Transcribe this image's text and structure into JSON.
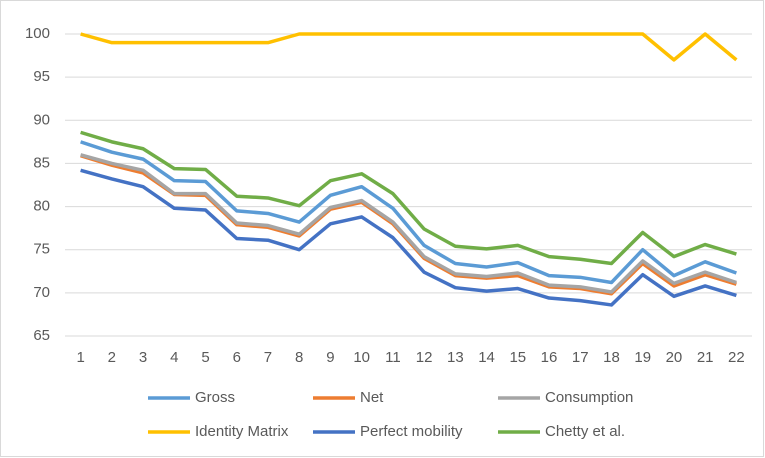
{
  "chart_data": {
    "type": "line",
    "categories": [
      "1",
      "2",
      "3",
      "4",
      "5",
      "6",
      "7",
      "8",
      "9",
      "10",
      "11",
      "12",
      "13",
      "14",
      "15",
      "16",
      "17",
      "18",
      "19",
      "20",
      "21",
      "22"
    ],
    "series": [
      {
        "name": "Gross",
        "color": "#5b9bd5",
        "values": [
          87.5,
          86.3,
          85.5,
          83,
          82.9,
          79.5,
          79.2,
          78.2,
          81.3,
          82.3,
          79.8,
          75.5,
          73.4,
          73,
          73.5,
          72,
          71.8,
          71.2,
          75,
          72,
          73.6,
          72.3
        ]
      },
      {
        "name": "Net",
        "color": "#ed7d31",
        "values": [
          85.9,
          84.8,
          83.9,
          81.4,
          81.3,
          77.9,
          77.6,
          76.6,
          79.7,
          80.5,
          78,
          74,
          72,
          71.7,
          72,
          70.7,
          70.5,
          69.9,
          73.4,
          70.8,
          72.1,
          71
        ]
      },
      {
        "name": "Consumption",
        "color": "#a5a5a5",
        "values": [
          86,
          85,
          84.2,
          81.5,
          81.5,
          78.1,
          77.8,
          76.8,
          79.9,
          80.7,
          78.2,
          74.2,
          72.2,
          71.9,
          72.3,
          70.9,
          70.7,
          70.1,
          73.7,
          71.1,
          72.4,
          71.2
        ]
      },
      {
        "name": "Identity Matrix",
        "color": "#ffc000",
        "values": [
          100,
          99,
          99,
          99,
          99,
          99,
          99,
          100,
          100,
          100,
          100,
          100,
          100,
          100,
          100,
          100,
          100,
          100,
          100,
          97,
          100,
          97
        ]
      },
      {
        "name": "Perfect mobility",
        "color": "#4472c4",
        "values": [
          84.2,
          83.2,
          82.3,
          79.8,
          79.6,
          76.3,
          76.1,
          75,
          78,
          78.8,
          76.4,
          72.4,
          70.6,
          70.2,
          70.5,
          69.4,
          69.1,
          68.6,
          72.1,
          69.6,
          70.8,
          69.7
        ]
      },
      {
        "name": "Chetty et al.",
        "color": "#70ad47",
        "values": [
          88.6,
          87.5,
          86.7,
          84.4,
          84.3,
          81.2,
          81,
          80.1,
          83,
          83.8,
          81.5,
          77.4,
          75.4,
          75.1,
          75.5,
          74.2,
          73.9,
          73.4,
          77,
          74.2,
          75.6,
          74.5
        ]
      }
    ],
    "ylim": [
      65,
      100
    ],
    "yticks": [
      65,
      70,
      75,
      80,
      85,
      90,
      95,
      100
    ],
    "grid": true,
    "legend": "bottom"
  }
}
